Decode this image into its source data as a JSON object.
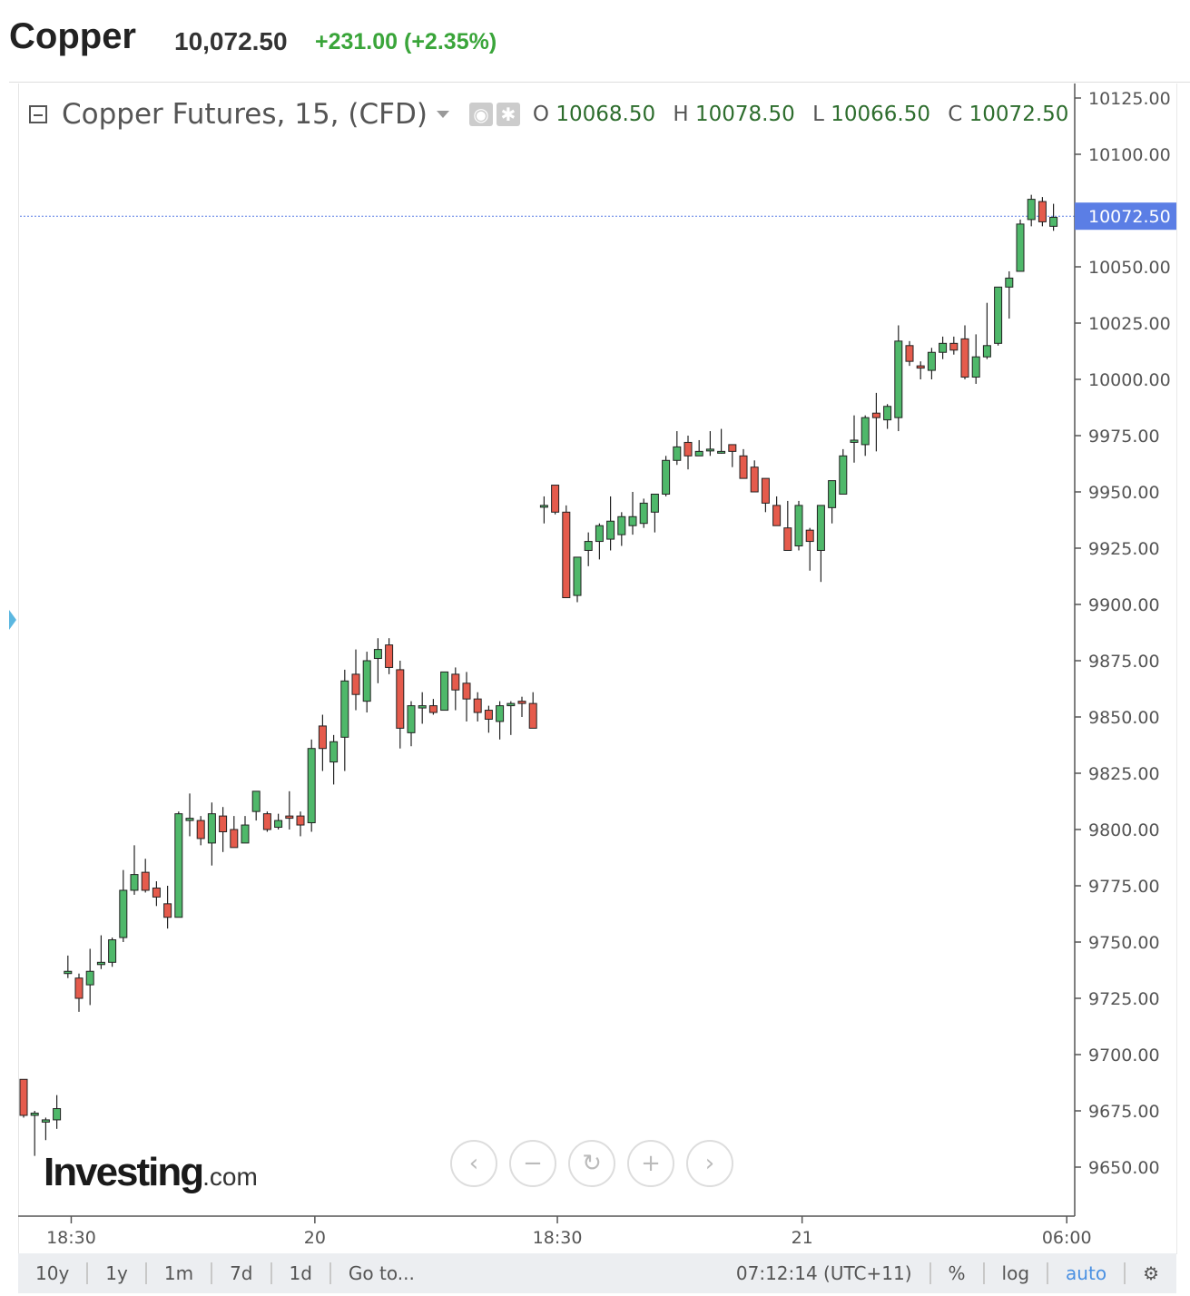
{
  "header": {
    "name": "Copper",
    "price": "10,072.50",
    "change": "+231.00 (+2.35%)"
  },
  "legend": {
    "title": "Copper Futures, 15, (CFD)",
    "eye_icon": "eye-icon",
    "settings_icon": "gear-icon",
    "o_label": "O",
    "o_value": "10068.50",
    "h_label": "H",
    "h_value": "10078.50",
    "l_label": "L",
    "l_value": "10066.50",
    "c_label": "C",
    "c_value": "10072.50"
  },
  "brand": {
    "name": "Investing",
    "suffix": ".com"
  },
  "colors": {
    "up": "#4fb86a",
    "down": "#e55b4c",
    "current": "#5b7ee5",
    "axis": "#555555"
  },
  "chart_data": {
    "type": "candlestick",
    "interval": "15",
    "current_price": "10072.50",
    "y_tick_labels": [
      "10125.00",
      "10100.00",
      "10072.50",
      "10050.00",
      "10025.00",
      "10000.00",
      "9975.00",
      "9950.00",
      "9925.00",
      "9900.00",
      "9875.00",
      "9850.00",
      "9825.00",
      "9800.00",
      "9775.00",
      "9750.00",
      "9725.00",
      "9700.00",
      "9675.00",
      "9650.00"
    ],
    "y_ticks": [
      10125,
      10100,
      10050,
      10025,
      10000,
      9975,
      9950,
      9925,
      9900,
      9875,
      9850,
      9825,
      9800,
      9775,
      9750,
      9725,
      9700,
      9675,
      9650
    ],
    "x_ticks": [
      {
        "label": "18:30",
        "index": 4.3
      },
      {
        "label": "20",
        "index": 26.3
      },
      {
        "label": "18:30",
        "index": 48.2
      },
      {
        "label": "21",
        "index": 70.3
      },
      {
        "label": "06:00",
        "index": 94.2
      }
    ],
    "candles": [
      [
        9689,
        9689,
        9672,
        9673
      ],
      [
        9673,
        9675,
        9655,
        9674
      ],
      [
        9670,
        9672,
        9662,
        9671
      ],
      [
        9671,
        9682,
        9667,
        9676
      ],
      [
        9736,
        9744,
        9734,
        9737
      ],
      [
        9734,
        9736,
        9719,
        9725
      ],
      [
        9731,
        9747,
        9722,
        9737
      ],
      [
        9740,
        9753,
        9738,
        9741
      ],
      [
        9741,
        9752,
        9739,
        9751
      ],
      [
        9752,
        9782,
        9750,
        9773
      ],
      [
        9773,
        9793,
        9771,
        9780
      ],
      [
        9781,
        9787,
        9772,
        9773
      ],
      [
        9774,
        9777,
        9766,
        9770
      ],
      [
        9767,
        9775,
        9756,
        9761
      ],
      [
        9761,
        9808,
        9761,
        9807
      ],
      [
        9804,
        9816,
        9797,
        9805
      ],
      [
        9804,
        9806,
        9793,
        9796
      ],
      [
        9794,
        9812,
        9784,
        9807
      ],
      [
        9806,
        9810,
        9790,
        9799
      ],
      [
        9800,
        9806,
        9792,
        9792
      ],
      [
        9794,
        9806,
        9794,
        9802
      ],
      [
        9808,
        9817,
        9804,
        9817
      ],
      [
        9807,
        9808,
        9799,
        9800
      ],
      [
        9801,
        9807,
        9800,
        9804
      ],
      [
        9806,
        9817,
        9800,
        9805
      ],
      [
        9806,
        9808,
        9797,
        9802
      ],
      [
        9803,
        9840,
        9799,
        9836
      ],
      [
        9846,
        9851,
        9826,
        9836
      ],
      [
        9830,
        9842,
        9820,
        9839
      ],
      [
        9841,
        9871,
        9826,
        9866
      ],
      [
        9869,
        9880,
        9853,
        9860
      ],
      [
        9857,
        9879,
        9852,
        9875
      ],
      [
        9876,
        9885,
        9865,
        9880
      ],
      [
        9882,
        9885,
        9869,
        9872
      ],
      [
        9871,
        9875,
        9836,
        9845
      ],
      [
        9843,
        9857,
        9837,
        9855
      ],
      [
        9854,
        9861,
        9847,
        9855
      ],
      [
        9855,
        9858,
        9851,
        9852
      ],
      [
        9853,
        9870,
        9853,
        9870
      ],
      [
        9869,
        9872,
        9853,
        9862
      ],
      [
        9865,
        9870,
        9848,
        9858
      ],
      [
        9858,
        9861,
        9848,
        9852
      ],
      [
        9853,
        9855,
        9843,
        9849
      ],
      [
        9848,
        9857,
        9840,
        9855
      ],
      [
        9855,
        9857,
        9842,
        9856
      ],
      [
        9857,
        9859,
        9850,
        9856
      ],
      [
        9856,
        9861,
        9845,
        9845
      ],
      [
        9944,
        9948,
        9936,
        9944
      ],
      [
        9953,
        9953,
        9940,
        9941
      ],
      [
        9941,
        9944,
        9903,
        9903
      ],
      [
        9904,
        9920,
        9901,
        9921
      ],
      [
        9924,
        9932,
        9917,
        9928
      ],
      [
        9928,
        9936,
        9920,
        9935
      ],
      [
        9929,
        9948,
        9924,
        9937
      ],
      [
        9931,
        9941,
        9926,
        9939
      ],
      [
        9935,
        9950,
        9931,
        9939
      ],
      [
        9936,
        9947,
        9934,
        9945
      ],
      [
        9941,
        9948,
        9932,
        9949
      ],
      [
        9949,
        9966,
        9948,
        9964
      ],
      [
        9964,
        9977,
        9962,
        9970
      ],
      [
        9972,
        9975,
        9960,
        9966
      ],
      [
        9966,
        9973,
        9966,
        9968
      ],
      [
        9969,
        9977,
        9966,
        9969
      ],
      [
        9968,
        9978,
        9967,
        9968
      ],
      [
        9971,
        9971,
        9961,
        9968
      ],
      [
        9966,
        9969,
        9959,
        9956
      ],
      [
        9961,
        9964,
        9952,
        9950
      ],
      [
        9956,
        9956,
        9941,
        9945
      ],
      [
        9944,
        9948,
        9937,
        9935
      ],
      [
        9934,
        9946,
        9924,
        9924
      ],
      [
        9926,
        9946,
        9924,
        9944
      ],
      [
        9933,
        9934,
        9915,
        9928
      ],
      [
        9924,
        9942,
        9910,
        9944
      ],
      [
        9943,
        9955,
        9936,
        9955
      ],
      [
        9949,
        9969,
        9949,
        9966
      ],
      [
        9972,
        9984,
        9963,
        9973
      ],
      [
        9971,
        9984,
        9966,
        9983
      ],
      [
        9985,
        9994,
        9968,
        9983
      ],
      [
        9982,
        9989,
        9978,
        9988
      ],
      [
        9983,
        10024,
        9977,
        10017
      ],
      [
        10015,
        10017,
        10006,
        10008
      ],
      [
        10006,
        10008,
        10000,
        10005
      ],
      [
        10004,
        10014,
        10000,
        10012
      ],
      [
        10012,
        10019,
        10009,
        10016
      ],
      [
        10016,
        10019,
        10011,
        10013
      ],
      [
        10018,
        10024,
        10000,
        10001
      ],
      [
        10001,
        10020,
        9998,
        10010
      ],
      [
        10010,
        10034,
        10009,
        10015
      ],
      [
        10016,
        10041,
        10015,
        10041
      ],
      [
        10041,
        10048,
        10027,
        10045
      ],
      [
        10048,
        10071,
        10048,
        10069
      ],
      [
        10071,
        10082,
        10068,
        10080
      ],
      [
        10079,
        10081,
        10068,
        10070
      ],
      [
        10068,
        10078,
        10066,
        10072
      ]
    ]
  },
  "bottombar": {
    "items": [
      "10y",
      "1y",
      "1m",
      "7d",
      "1d",
      "Go to..."
    ],
    "time": "07:12:14 (UTC+11)",
    "right_items": [
      "%",
      "log",
      "auto"
    ]
  }
}
